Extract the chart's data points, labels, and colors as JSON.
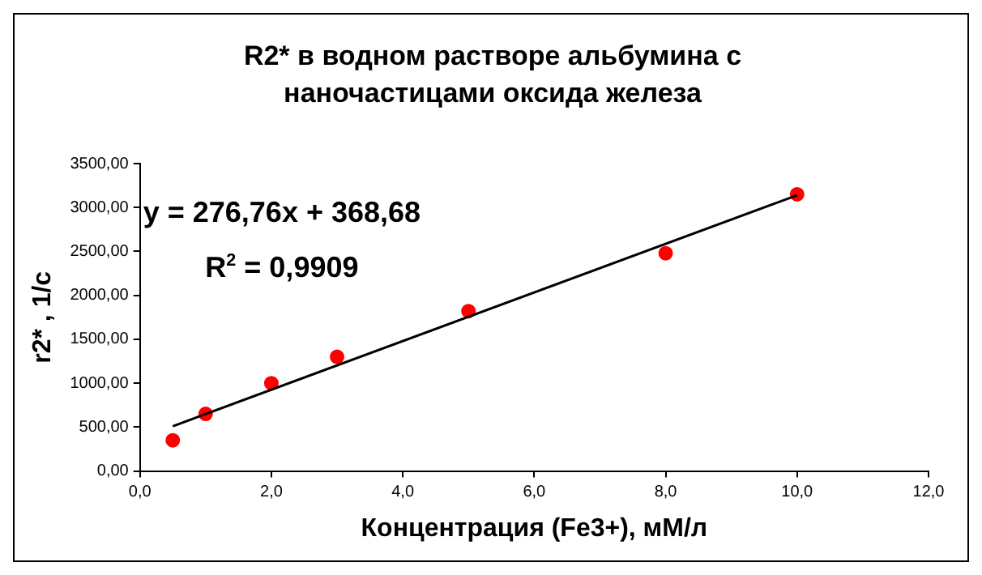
{
  "chart_data": {
    "type": "scatter",
    "title": "R2* в водном растворе альбумина с наночастицами оксида железа",
    "xlabel": "Концентрация (Fe3+), мМ/л",
    "ylabel": "r2* , 1/с",
    "x": [
      0.5,
      1,
      2,
      3,
      5,
      8,
      10
    ],
    "series": [
      {
        "color": "#ff0000",
        "values": [
          350,
          650,
          1000,
          1300,
          1820,
          2480,
          3150
        ]
      },
      {
        "type": "line",
        "color": "#000000",
        "marker": "none",
        "x": [
          0.5,
          10
        ],
        "values": [
          510,
          3140
        ]
      }
    ],
    "marker": "circle",
    "xlim": [
      0,
      12
    ],
    "xticks": [
      {
        "value": 0,
        "label": "0,0"
      },
      {
        "value": 2,
        "label": "2,0"
      },
      {
        "value": 4,
        "label": "4,0"
      },
      {
        "value": 6,
        "label": "6,0"
      },
      {
        "value": 8,
        "label": "8,0"
      },
      {
        "value": 10,
        "label": "10,0"
      },
      {
        "value": 12,
        "label": "12,0"
      }
    ],
    "ylim": [
      0,
      3500
    ],
    "yticks": [
      {
        "value": 0,
        "label": "0,00"
      },
      {
        "value": 500,
        "label": "500,00"
      },
      {
        "value": 1000,
        "label": "1000,00"
      },
      {
        "value": 1500,
        "label": "1500,00"
      },
      {
        "value": 2000,
        "label": "2000,00"
      },
      {
        "value": 2500,
        "label": "2500,00"
      },
      {
        "value": 3000,
        "label": "3000,00"
      },
      {
        "value": 3500,
        "label": "3500,00"
      }
    ],
    "grid": false,
    "legend": false,
    "annotations": [
      "y = 276,76x + 368,68",
      "R$^{2}$ = 0,9909"
    ]
  }
}
